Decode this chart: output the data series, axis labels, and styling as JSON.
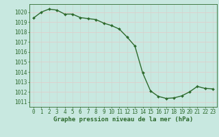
{
  "x": [
    0,
    1,
    2,
    3,
    4,
    5,
    6,
    7,
    8,
    9,
    10,
    11,
    12,
    13,
    14,
    15,
    16,
    17,
    18,
    19,
    20,
    21,
    22,
    23
  ],
  "y": [
    1019.4,
    1020.0,
    1020.3,
    1020.2,
    1019.8,
    1019.8,
    1019.45,
    1019.35,
    1019.25,
    1018.9,
    1018.65,
    1018.3,
    1017.5,
    1016.6,
    1013.9,
    1012.1,
    1011.55,
    1011.35,
    1011.4,
    1011.6,
    1012.0,
    1012.55,
    1012.35,
    1012.3
  ],
  "line_color": "#2d6a2d",
  "marker": "D",
  "marker_size": 2.0,
  "bg_color": "#c8e8e0",
  "grid_color_h": "#e8c8c8",
  "grid_color_v": "#c8d8d0",
  "ylabel_ticks": [
    1011,
    1012,
    1013,
    1014,
    1015,
    1016,
    1017,
    1018,
    1019,
    1020
  ],
  "ylim": [
    1010.5,
    1020.8
  ],
  "xlim": [
    -0.5,
    23.5
  ],
  "xlabel": "Graphe pression niveau de la mer (hPa)",
  "xlabel_fontsize": 6.5,
  "tick_fontsize": 5.5,
  "line_width": 1.0
}
